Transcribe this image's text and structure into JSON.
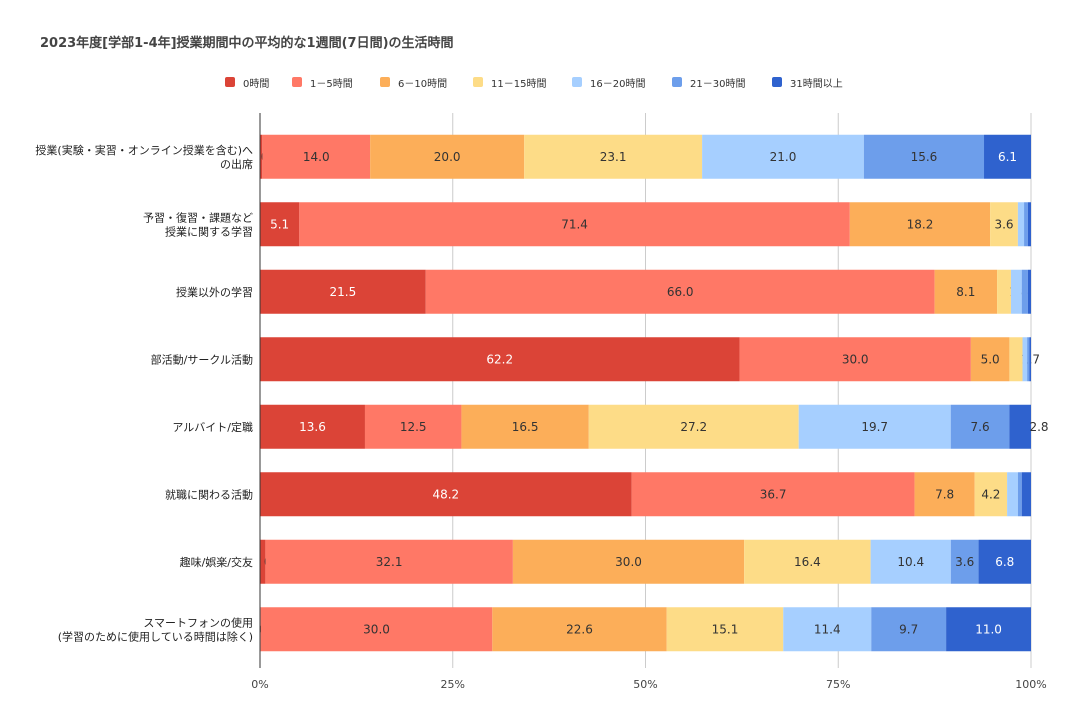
{
  "chart_data": {
    "type": "bar",
    "orientation": "horizontal",
    "stacked": "percent",
    "title": "2023年度[学部1-4年]授業期間中の平均的な1週間(7日間)の生活時間",
    "categories": [
      [
        "授業(実験・実習・オンライン授業を含む)へ",
        "の出席"
      ],
      [
        "予習・復習・課題など",
        "授業に関する学習"
      ],
      [
        "授業以外の学習"
      ],
      [
        "部活動/サークル活動"
      ],
      [
        "アルバイト/定職"
      ],
      [
        "就職に関わる活動"
      ],
      [
        "趣味/娯楽/交友"
      ],
      [
        "スマートフォンの使用",
        "(学習のために使用している時間は除く)"
      ]
    ],
    "series": [
      {
        "name": "0時間",
        "color": "#db4437",
        "values": [
          0.3,
          5.1,
          21.5,
          62.2,
          13.6,
          48.2,
          0.7,
          0.1
        ]
      },
      {
        "name": "1－5時間",
        "color": "#ff7866",
        "values": [
          14.0,
          71.4,
          66.0,
          30.0,
          12.5,
          36.7,
          32.1,
          30.0
        ]
      },
      {
        "name": "6－10時間",
        "color": "#fcae59",
        "values": [
          20.0,
          18.2,
          8.1,
          5.0,
          16.5,
          7.8,
          30.0,
          22.6
        ]
      },
      {
        "name": "11－15時間",
        "color": "#fddc87",
        "values": [
          23.1,
          3.6,
          1.8,
          1.7,
          27.2,
          4.2,
          16.4,
          15.1
        ]
      },
      {
        "name": "16－20時間",
        "color": "#a6cfff",
        "values": [
          21.0,
          0.8,
          1.4,
          0.6,
          19.7,
          1.4,
          10.4,
          11.4
        ]
      },
      {
        "name": "21－30時間",
        "color": "#6d9eeb",
        "values": [
          15.6,
          0.5,
          0.8,
          0.3,
          7.6,
          0.5,
          3.6,
          9.7
        ]
      },
      {
        "name": "31時間以上",
        "color": "#2f62ce",
        "values": [
          6.1,
          0.4,
          0.4,
          0.2,
          2.8,
          1.2,
          6.8,
          11.0
        ]
      }
    ],
    "xlim": [
      0,
      100
    ],
    "x_ticks": [
      "0%",
      "25%",
      "50%",
      "75%",
      "100%"
    ],
    "grid": true,
    "legend_position": "top-center"
  }
}
